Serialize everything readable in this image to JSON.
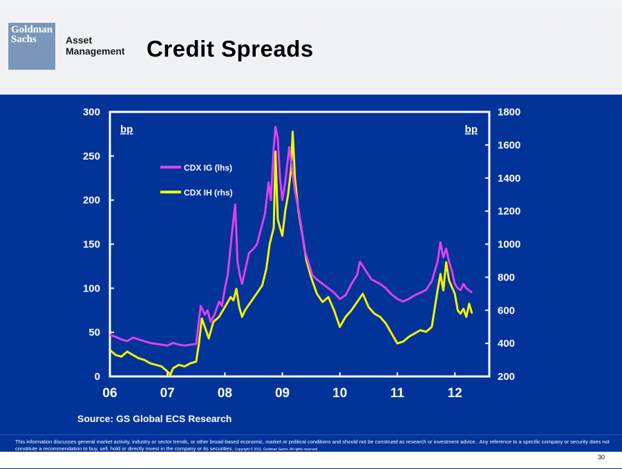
{
  "header": {
    "logo_line1": "Goldman",
    "logo_line2": "Sachs",
    "division_line1": "Asset",
    "division_line2": "Management",
    "title": "Credit Spreads"
  },
  "footer": {
    "source": "Source: GS Global ECS Research",
    "disclaimer": "This information discusses general market activity, industry or sector trends, or other broad-based economic, market or political conditions and should not be construed as research or investment advice.. Any reference to a specific company or security does not constitute a recommendation to buy, sell, hold or directly invest in the company or its securities.",
    "copyright": "Copyright © 2011, Goldman Sachs. All rights reserved.",
    "page_number": "30"
  },
  "colors": {
    "background": "#023399",
    "cdx_ig": "#e040f0",
    "cdx_ih": "#f5f500",
    "frame": "#ffffff"
  },
  "chart_data": {
    "type": "line",
    "left_axis_unit": "bp",
    "right_axis_unit": "bp",
    "xlim": [
      6.0,
      12.6
    ],
    "ylim_left": [
      0,
      300
    ],
    "ylim_right": [
      200,
      1800
    ],
    "x_ticks": [
      6,
      7,
      8,
      9,
      10,
      11,
      12
    ],
    "x_tick_labels": [
      "06",
      "07",
      "08",
      "09",
      "10",
      "11",
      "12"
    ],
    "left_ticks": [
      0,
      50,
      100,
      150,
      200,
      250,
      300
    ],
    "right_ticks": [
      200,
      400,
      600,
      800,
      1000,
      1200,
      1400,
      1600,
      1800
    ],
    "legend_placement": "upper-left",
    "series": [
      {
        "name": "CDX IG (lhs)",
        "axis": "left",
        "color": "#e040f0",
        "points": [
          [
            6.0,
            47
          ],
          [
            6.1,
            45
          ],
          [
            6.2,
            42
          ],
          [
            6.3,
            40
          ],
          [
            6.4,
            44
          ],
          [
            6.5,
            42
          ],
          [
            6.6,
            40
          ],
          [
            6.7,
            38
          ],
          [
            6.8,
            37
          ],
          [
            6.9,
            36
          ],
          [
            7.0,
            35
          ],
          [
            7.1,
            38
          ],
          [
            7.2,
            36
          ],
          [
            7.3,
            35
          ],
          [
            7.4,
            36
          ],
          [
            7.5,
            37
          ],
          [
            7.58,
            80
          ],
          [
            7.65,
            70
          ],
          [
            7.7,
            75
          ],
          [
            7.75,
            62
          ],
          [
            7.82,
            70
          ],
          [
            7.9,
            85
          ],
          [
            7.95,
            80
          ],
          [
            8.0,
            100
          ],
          [
            8.05,
            115
          ],
          [
            8.12,
            160
          ],
          [
            8.18,
            195
          ],
          [
            8.22,
            130
          ],
          [
            8.26,
            115
          ],
          [
            8.3,
            105
          ],
          [
            8.35,
            120
          ],
          [
            8.42,
            140
          ],
          [
            8.5,
            145
          ],
          [
            8.56,
            150
          ],
          [
            8.62,
            165
          ],
          [
            8.7,
            185
          ],
          [
            8.76,
            220
          ],
          [
            8.8,
            200
          ],
          [
            8.85,
            260
          ],
          [
            8.88,
            283
          ],
          [
            8.92,
            270
          ],
          [
            8.96,
            225
          ],
          [
            9.0,
            200
          ],
          [
            9.05,
            220
          ],
          [
            9.12,
            260
          ],
          [
            9.17,
            235
          ],
          [
            9.22,
            210
          ],
          [
            9.28,
            190
          ],
          [
            9.33,
            170
          ],
          [
            9.38,
            145
          ],
          [
            9.45,
            130
          ],
          [
            9.52,
            115
          ],
          [
            9.6,
            110
          ],
          [
            9.7,
            105
          ],
          [
            9.8,
            100
          ],
          [
            9.9,
            95
          ],
          [
            10.0,
            88
          ],
          [
            10.1,
            92
          ],
          [
            10.2,
            105
          ],
          [
            10.3,
            115
          ],
          [
            10.35,
            130
          ],
          [
            10.45,
            120
          ],
          [
            10.55,
            110
          ],
          [
            10.7,
            105
          ],
          [
            10.8,
            100
          ],
          [
            10.9,
            93
          ],
          [
            11.0,
            88
          ],
          [
            11.1,
            85
          ],
          [
            11.2,
            88
          ],
          [
            11.3,
            92
          ],
          [
            11.4,
            95
          ],
          [
            11.5,
            98
          ],
          [
            11.6,
            108
          ],
          [
            11.7,
            130
          ],
          [
            11.75,
            152
          ],
          [
            11.8,
            135
          ],
          [
            11.85,
            145
          ],
          [
            11.9,
            130
          ],
          [
            11.95,
            120
          ],
          [
            12.0,
            105
          ],
          [
            12.05,
            100
          ],
          [
            12.1,
            98
          ],
          [
            12.15,
            105
          ],
          [
            12.2,
            100
          ],
          [
            12.3,
            95
          ]
        ]
      },
      {
        "name": "CDX IH (rhs)",
        "axis": "right",
        "color": "#f5f500",
        "points": [
          [
            6.0,
            360
          ],
          [
            6.1,
            330
          ],
          [
            6.2,
            320
          ],
          [
            6.3,
            350
          ],
          [
            6.4,
            330
          ],
          [
            6.5,
            310
          ],
          [
            6.6,
            300
          ],
          [
            6.7,
            280
          ],
          [
            6.8,
            270
          ],
          [
            6.9,
            260
          ],
          [
            7.0,
            230
          ],
          [
            7.05,
            210
          ],
          [
            7.1,
            250
          ],
          [
            7.2,
            270
          ],
          [
            7.3,
            260
          ],
          [
            7.4,
            280
          ],
          [
            7.5,
            290
          ],
          [
            7.55,
            400
          ],
          [
            7.6,
            550
          ],
          [
            7.65,
            500
          ],
          [
            7.72,
            430
          ],
          [
            7.8,
            530
          ],
          [
            7.9,
            560
          ],
          [
            8.0,
            620
          ],
          [
            8.1,
            680
          ],
          [
            8.15,
            660
          ],
          [
            8.2,
            730
          ],
          [
            8.25,
            620
          ],
          [
            8.3,
            560
          ],
          [
            8.35,
            600
          ],
          [
            8.45,
            650
          ],
          [
            8.55,
            700
          ],
          [
            8.65,
            750
          ],
          [
            8.72,
            850
          ],
          [
            8.78,
            1000
          ],
          [
            8.85,
            1100
          ],
          [
            8.88,
            1560
          ],
          [
            8.92,
            1150
          ],
          [
            9.0,
            1050
          ],
          [
            9.05,
            1200
          ],
          [
            9.1,
            1300
          ],
          [
            9.15,
            1450
          ],
          [
            9.18,
            1680
          ],
          [
            9.22,
            1400
          ],
          [
            9.28,
            1200
          ],
          [
            9.35,
            1050
          ],
          [
            9.42,
            900
          ],
          [
            9.5,
            800
          ],
          [
            9.6,
            700
          ],
          [
            9.7,
            650
          ],
          [
            9.8,
            680
          ],
          [
            9.9,
            600
          ],
          [
            10.0,
            500
          ],
          [
            10.1,
            560
          ],
          [
            10.2,
            600
          ],
          [
            10.3,
            650
          ],
          [
            10.4,
            700
          ],
          [
            10.5,
            620
          ],
          [
            10.6,
            580
          ],
          [
            10.7,
            560
          ],
          [
            10.8,
            520
          ],
          [
            10.9,
            460
          ],
          [
            11.0,
            400
          ],
          [
            11.1,
            410
          ],
          [
            11.2,
            440
          ],
          [
            11.3,
            460
          ],
          [
            11.4,
            480
          ],
          [
            11.5,
            470
          ],
          [
            11.6,
            500
          ],
          [
            11.7,
            720
          ],
          [
            11.75,
            820
          ],
          [
            11.8,
            720
          ],
          [
            11.85,
            890
          ],
          [
            11.9,
            780
          ],
          [
            12.0,
            700
          ],
          [
            12.05,
            600
          ],
          [
            12.1,
            580
          ],
          [
            12.15,
            610
          ],
          [
            12.2,
            560
          ],
          [
            12.25,
            640
          ],
          [
            12.3,
            580
          ]
        ]
      }
    ]
  }
}
